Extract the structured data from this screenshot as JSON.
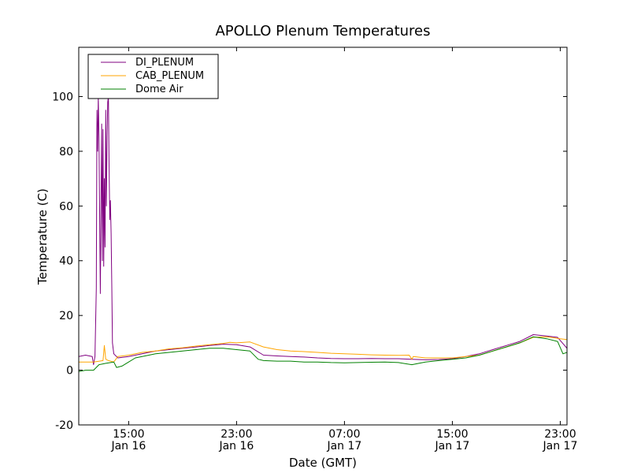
{
  "chart_data": {
    "type": "line",
    "title": "APOLLO Plenum Temperatures",
    "xlabel": "Date (GMT)",
    "ylabel": "Temperature (C)",
    "ylim": [
      -20,
      118
    ],
    "xlim": [
      11.3,
      47.5
    ],
    "yticks": [
      {
        "value": -20,
        "label": "-20"
      },
      {
        "value": 0,
        "label": "0"
      },
      {
        "value": 20,
        "label": "20"
      },
      {
        "value": 40,
        "label": "40"
      },
      {
        "value": 60,
        "label": "60"
      },
      {
        "value": 80,
        "label": "80"
      },
      {
        "value": 100,
        "label": "100"
      }
    ],
    "xticks": [
      {
        "value": 15,
        "time": "15:00",
        "date": "Jan 16"
      },
      {
        "value": 23,
        "time": "23:00",
        "date": "Jan 16"
      },
      {
        "value": 31,
        "time": "07:00",
        "date": "Jan 17"
      },
      {
        "value": 39,
        "time": "15:00",
        "date": "Jan 17"
      },
      {
        "value": 47,
        "time": "23:00",
        "date": "Jan 17"
      }
    ],
    "legend_position": "top-left",
    "series": [
      {
        "name": "DI_PLENUM",
        "color": "#800080",
        "points": [
          [
            11.3,
            5
          ],
          [
            11.8,
            5.5
          ],
          [
            12.3,
            5
          ],
          [
            12.4,
            2
          ],
          [
            12.5,
            5
          ],
          [
            12.6,
            30
          ],
          [
            12.65,
            95
          ],
          [
            12.7,
            80
          ],
          [
            12.75,
            100
          ],
          [
            12.8,
            85
          ],
          [
            12.9,
            28
          ],
          [
            12.95,
            60
          ],
          [
            13.0,
            90
          ],
          [
            13.05,
            40
          ],
          [
            13.1,
            88
          ],
          [
            13.15,
            38
          ],
          [
            13.2,
            70
          ],
          [
            13.25,
            45
          ],
          [
            13.3,
            95
          ],
          [
            13.35,
            60
          ],
          [
            13.4,
            85
          ],
          [
            13.45,
            98
          ],
          [
            13.5,
            100
          ],
          [
            13.55,
            75
          ],
          [
            13.6,
            55
          ],
          [
            13.65,
            62
          ],
          [
            13.7,
            50
          ],
          [
            13.75,
            30
          ],
          [
            13.8,
            10
          ],
          [
            13.9,
            6
          ],
          [
            14.2,
            4.5
          ],
          [
            15,
            5
          ],
          [
            15.5,
            5.5
          ],
          [
            16,
            6
          ],
          [
            17,
            7
          ],
          [
            18,
            7.5
          ],
          [
            19,
            8
          ],
          [
            20,
            8.5
          ],
          [
            21,
            9
          ],
          [
            22,
            9.5
          ],
          [
            23,
            9.3
          ],
          [
            24,
            8.5
          ],
          [
            25,
            5.5
          ],
          [
            26,
            5.2
          ],
          [
            27,
            5
          ],
          [
            28,
            4.8
          ],
          [
            29,
            4.5
          ],
          [
            30,
            4.3
          ],
          [
            31,
            4.2
          ],
          [
            32,
            4.2
          ],
          [
            33,
            4.3
          ],
          [
            34,
            4.2
          ],
          [
            35,
            4.2
          ],
          [
            36,
            4
          ],
          [
            37,
            3.8
          ],
          [
            38,
            3.9
          ],
          [
            39,
            4.2
          ],
          [
            40,
            5
          ],
          [
            41,
            6
          ],
          [
            42,
            7.5
          ],
          [
            43,
            9
          ],
          [
            44,
            10.5
          ],
          [
            45,
            13
          ],
          [
            46,
            12.5
          ],
          [
            46.8,
            12
          ],
          [
            47.5,
            8
          ]
        ]
      },
      {
        "name": "CAB_PLENUM",
        "color": "#FFA500",
        "points": [
          [
            11.3,
            3
          ],
          [
            12,
            3
          ],
          [
            12.4,
            3
          ],
          [
            13.1,
            3.5
          ],
          [
            13.2,
            9
          ],
          [
            13.3,
            4
          ],
          [
            13.5,
            3.5
          ],
          [
            13.9,
            3
          ],
          [
            14.2,
            5
          ],
          [
            15,
            5.5
          ],
          [
            16,
            6.5
          ],
          [
            17,
            7
          ],
          [
            18,
            7.8
          ],
          [
            19,
            8.2
          ],
          [
            20,
            8.8
          ],
          [
            21,
            9.3
          ],
          [
            22,
            9.8
          ],
          [
            22.5,
            10.2
          ],
          [
            23,
            10
          ],
          [
            24,
            10.3
          ],
          [
            25,
            8.5
          ],
          [
            26,
            7.5
          ],
          [
            27,
            7
          ],
          [
            28,
            6.8
          ],
          [
            29,
            6.5
          ],
          [
            30,
            6.2
          ],
          [
            31,
            6
          ],
          [
            32,
            5.8
          ],
          [
            33,
            5.6
          ],
          [
            34,
            5.5
          ],
          [
            35,
            5.4
          ],
          [
            35.8,
            5.5
          ],
          [
            36,
            4
          ],
          [
            36.1,
            5
          ],
          [
            37,
            4.5
          ],
          [
            38,
            4.5
          ],
          [
            39,
            4.5
          ],
          [
            40,
            5
          ],
          [
            41,
            5.5
          ],
          [
            42,
            7
          ],
          [
            43,
            8.5
          ],
          [
            44,
            10
          ],
          [
            45,
            12
          ],
          [
            46,
            12.2
          ],
          [
            47,
            11.5
          ],
          [
            47.5,
            11.2
          ]
        ]
      },
      {
        "name": "Dome Air",
        "color": "#008000",
        "points": [
          [
            11.3,
            -0.5
          ],
          [
            11.8,
            0
          ],
          [
            12.4,
            0
          ],
          [
            12.8,
            2
          ],
          [
            13.3,
            2.5
          ],
          [
            13.9,
            3
          ],
          [
            14.1,
            1
          ],
          [
            14.5,
            1.5
          ],
          [
            15,
            3
          ],
          [
            15.5,
            4.5
          ],
          [
            16,
            5
          ],
          [
            17,
            6
          ],
          [
            18,
            6.5
          ],
          [
            19,
            7
          ],
          [
            20,
            7.5
          ],
          [
            21,
            8
          ],
          [
            22,
            8
          ],
          [
            23,
            7.5
          ],
          [
            24,
            7
          ],
          [
            24.6,
            4
          ],
          [
            25,
            3.5
          ],
          [
            26,
            3.3
          ],
          [
            27,
            3.3
          ],
          [
            28,
            3
          ],
          [
            29,
            3
          ],
          [
            30,
            2.8
          ],
          [
            31,
            2.7
          ],
          [
            32,
            2.8
          ],
          [
            33,
            2.9
          ],
          [
            34,
            3
          ],
          [
            35,
            2.8
          ],
          [
            36,
            2
          ],
          [
            37,
            3
          ],
          [
            38,
            3.5
          ],
          [
            39,
            4
          ],
          [
            40,
            4.5
          ],
          [
            41,
            5.5
          ],
          [
            42,
            7
          ],
          [
            43,
            8.5
          ],
          [
            44,
            10
          ],
          [
            45,
            12.2
          ],
          [
            46,
            11.5
          ],
          [
            46.8,
            10.5
          ],
          [
            47.2,
            6
          ],
          [
            47.5,
            6.5
          ]
        ]
      }
    ]
  }
}
